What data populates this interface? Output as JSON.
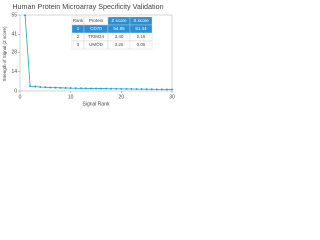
{
  "chart_data": {
    "type": "line",
    "title": "Human Protein Microarray Specificity Validation",
    "xlabel": "Signal Rank",
    "ylabel": "Strength of Signal (Z score)",
    "x": [
      1,
      2,
      3,
      4,
      5,
      6,
      7,
      8,
      9,
      10,
      11,
      12,
      13,
      14,
      15,
      16,
      17,
      18,
      19,
      20,
      21,
      22,
      23,
      24,
      25,
      26,
      27,
      28,
      29,
      30
    ],
    "series": [
      {
        "color": "#1fa3d8",
        "values": [
          54.85,
          3.4,
          3.25,
          2.9,
          2.7,
          2.5,
          2.4,
          2.3,
          2.2,
          2.1,
          2.0,
          1.95,
          1.9,
          1.85,
          1.8,
          1.75,
          1.7,
          1.65,
          1.6,
          1.55,
          1.5,
          1.45,
          1.4,
          1.35,
          1.3,
          1.25,
          1.2,
          1.15,
          1.1,
          1.05
        ]
      }
    ],
    "xlim": [
      0,
      30
    ],
    "xticks": [
      0,
      10,
      20,
      30
    ],
    "ylim": [
      0,
      55
    ],
    "yticks": [
      0,
      14,
      28,
      41,
      55
    ]
  },
  "table": {
    "columns": [
      "Rank",
      "Protein",
      "Z score",
      "S score"
    ],
    "rows": [
      [
        "1",
        "CD70",
        "54.85",
        "51.44"
      ],
      [
        "2",
        "TRIM24",
        "3.40",
        "2.15"
      ],
      [
        "3",
        "UMOD",
        "3.25",
        "0.05"
      ]
    ]
  }
}
